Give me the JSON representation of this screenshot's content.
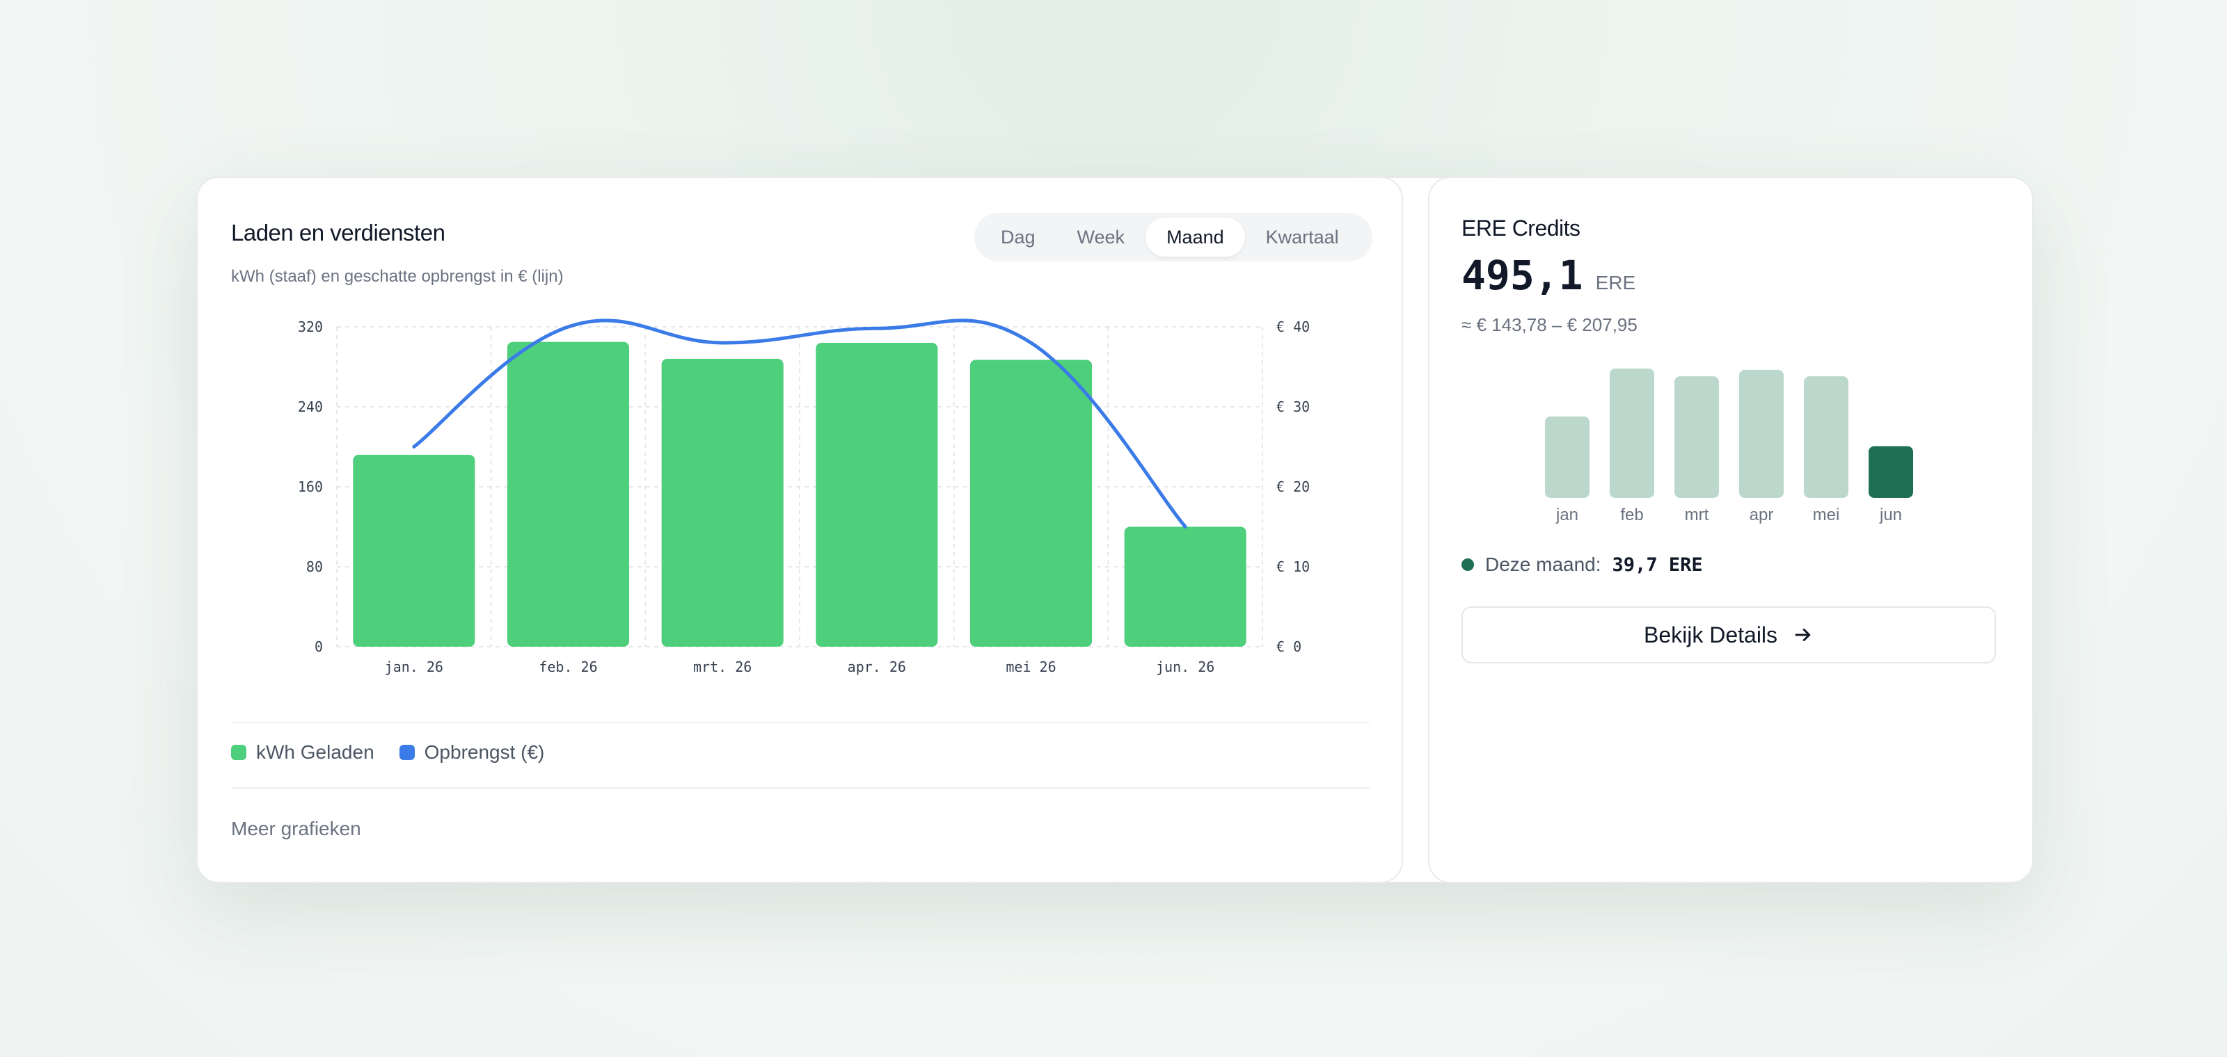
{
  "main": {
    "title": "Laden en verdiensten",
    "subtitle": "kWh (staaf) en geschatte opbrengst in € (lijn)",
    "tabs": [
      {
        "label": "Dag",
        "active": false
      },
      {
        "label": "Week",
        "active": false
      },
      {
        "label": "Maand",
        "active": true
      },
      {
        "label": "Kwartaal",
        "active": false
      }
    ],
    "legend": {
      "kwh_label": "kWh Geladen",
      "revenue_label": "Opbrengst (€)"
    },
    "more_label": "Meer grafieken"
  },
  "chart_data": {
    "type": "bar",
    "categories": [
      "jan. 26",
      "feb. 26",
      "mrt. 26",
      "apr. 26",
      "mei 26",
      "jun. 26"
    ],
    "series": [
      {
        "name": "kWh Geladen",
        "type": "bar",
        "axis": "left",
        "values": [
          192,
          305,
          288,
          304,
          287,
          120
        ]
      },
      {
        "name": "Opbrengst (€)",
        "type": "line",
        "axis": "right",
        "values": [
          25,
          40,
          38,
          39.8,
          38,
          15
        ]
      }
    ],
    "y_left": {
      "ticks": [
        "0",
        "80",
        "160",
        "240",
        "320"
      ],
      "ylim": [
        0,
        320
      ]
    },
    "y_right": {
      "ticks": [
        "€ 0",
        "€ 10",
        "€ 20",
        "€ 30",
        "€ 40"
      ],
      "ylim": [
        0,
        40
      ]
    },
    "grid": true,
    "colors": {
      "bar": "#4ecf7b",
      "line": "#3b7be8"
    }
  },
  "side": {
    "title": "ERE Credits",
    "value": "495,1",
    "unit": "ERE",
    "range": "≈ € 143,78 – € 207,95",
    "mini_chart": {
      "categories": [
        "jan",
        "feb",
        "mrt",
        "apr",
        "mei",
        "jun"
      ],
      "values": [
        0.63,
        1.0,
        0.94,
        0.99,
        0.94,
        0.4
      ],
      "highlight_index": 5,
      "colors": {
        "bar": "#bcd8cc",
        "highlight": "#1f6f54"
      }
    },
    "this_month_label": "Deze maand:",
    "this_month_value": "39,7 ERE",
    "details_label": "Bekijk Details",
    "details_icon": "arrow-right-icon"
  }
}
